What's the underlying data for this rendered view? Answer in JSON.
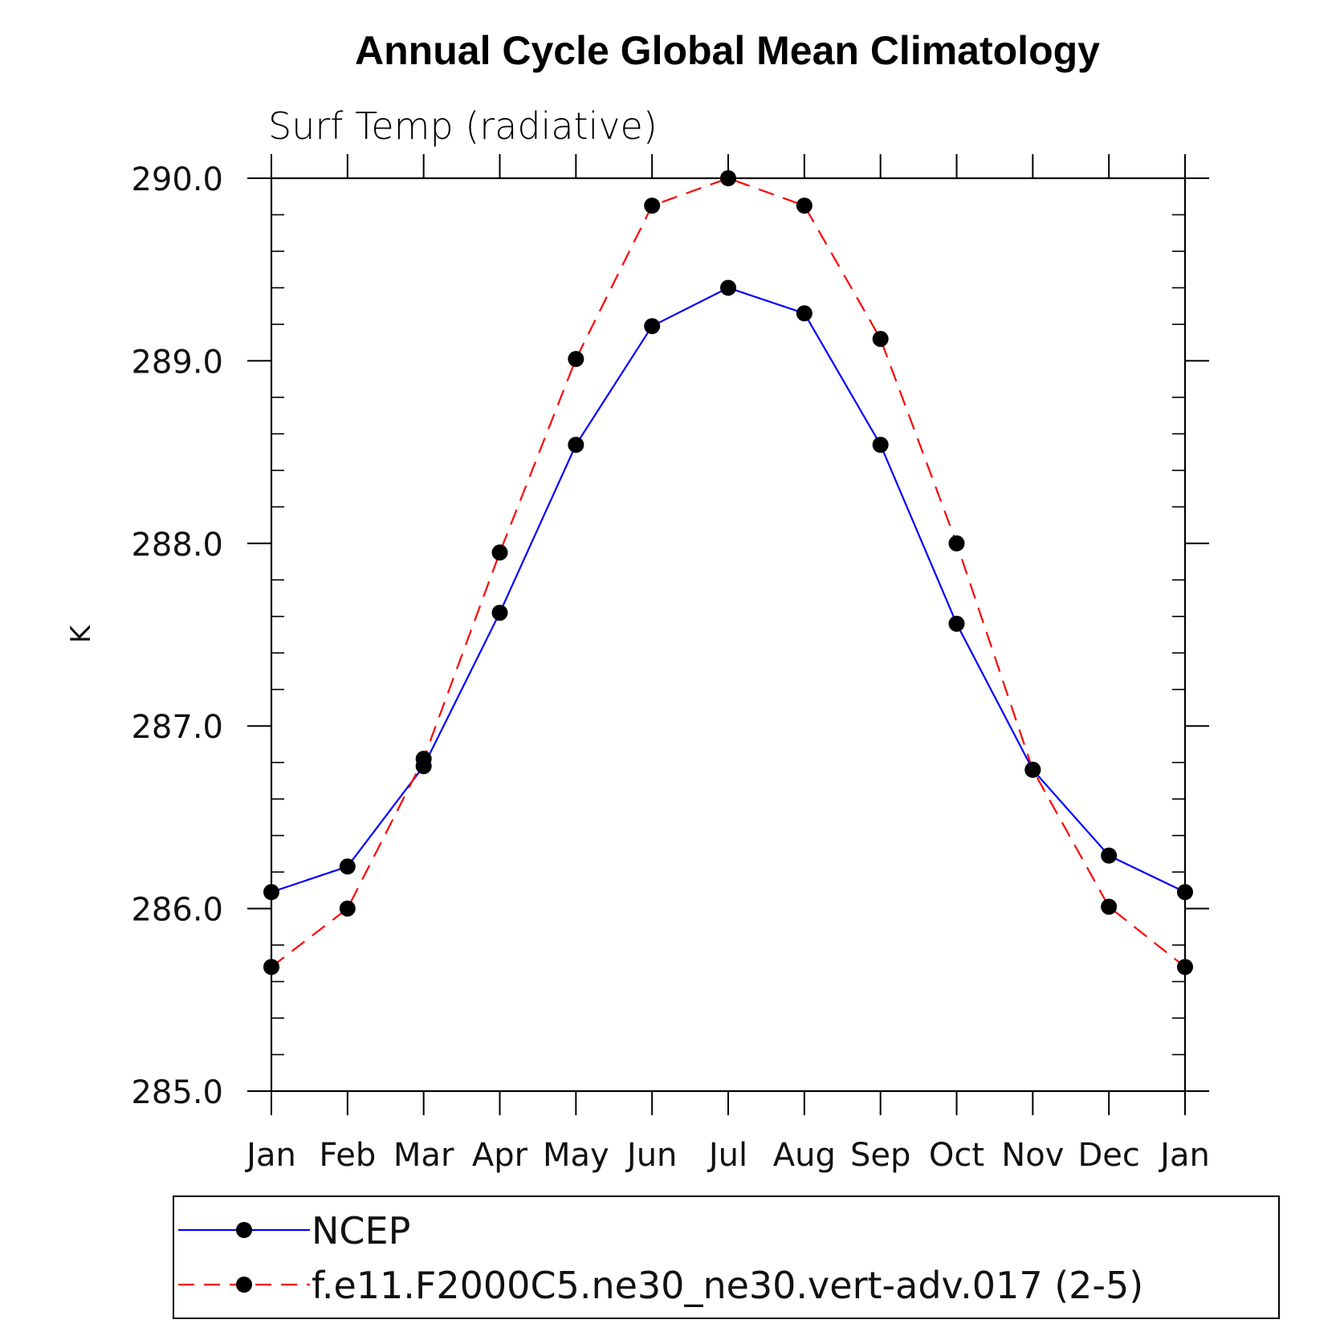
{
  "chart_data": {
    "type": "line",
    "title": "Annual Cycle Global Mean Climatology",
    "subtitle": "Surf Temp (radiative)",
    "xlabel": "",
    "ylabel": "K",
    "categories": [
      "Jan",
      "Feb",
      "Mar",
      "Apr",
      "May",
      "Jun",
      "Jul",
      "Aug",
      "Sep",
      "Oct",
      "Nov",
      "Dec",
      "Jan"
    ],
    "ylim": [
      285.0,
      290.0
    ],
    "yticks": [
      "285.0",
      "286.0",
      "287.0",
      "288.0",
      "289.0",
      "290.0"
    ],
    "grid": false,
    "legend_position": "bottom",
    "series": [
      {
        "name": "NCEP",
        "color": "#0000ff",
        "style": "solid",
        "marker": "circle",
        "values": [
          286.09,
          286.23,
          286.78,
          287.62,
          288.54,
          289.19,
          289.4,
          289.26,
          288.54,
          287.56,
          286.76,
          286.29,
          286.09
        ]
      },
      {
        "name": "f.e11.F2000C5.ne30_ne30.vert-adv.017 (2-5)",
        "color": "#ff0000",
        "style": "dashed",
        "marker": "circle",
        "values": [
          285.68,
          286.0,
          286.82,
          287.95,
          289.01,
          289.85,
          290.0,
          289.85,
          289.12,
          288.0,
          286.76,
          286.01,
          285.68
        ]
      }
    ]
  }
}
